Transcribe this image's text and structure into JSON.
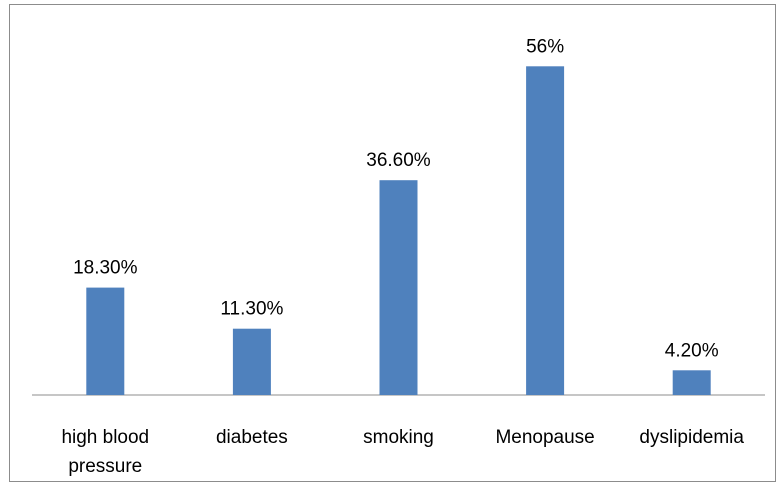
{
  "chart_data": {
    "type": "bar",
    "categories": [
      [
        "high blood",
        "pressure"
      ],
      [
        "diabetes"
      ],
      [
        "smoking"
      ],
      [
        "Menopause"
      ],
      [
        "dyslipidemia"
      ]
    ],
    "values": [
      18.3,
      11.3,
      36.6,
      56,
      4.2
    ],
    "data_labels": [
      "18.30%",
      "11.30%",
      "36.60%",
      "56%",
      "4.20%"
    ],
    "title": "",
    "xlabel": "",
    "ylabel": "",
    "ylim": [
      0,
      60
    ],
    "grid": false,
    "legend": "none",
    "bar_color": "#4f81bd"
  }
}
